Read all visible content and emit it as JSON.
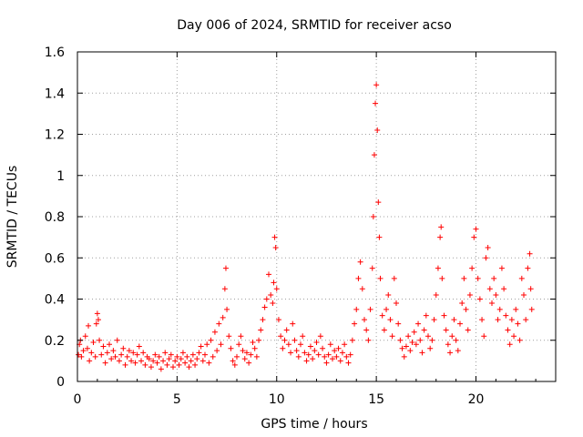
{
  "chart_data": {
    "type": "scatter",
    "title": "Day 006 of 2024, SRMTID for receiver acso",
    "xlabel": "GPS time / hours",
    "ylabel": "SRMTID / TECUs",
    "xlim": [
      0,
      24
    ],
    "ylim": [
      0,
      1.6
    ],
    "xticks": [
      0,
      5,
      10,
      15,
      20
    ],
    "xtick_labels": [
      "0",
      "5",
      "10",
      "15",
      "20"
    ],
    "yticks": [
      0,
      0.2,
      0.4,
      0.6,
      0.8,
      1.0,
      1.2,
      1.4,
      1.6
    ],
    "ytick_labels": [
      "0",
      "0.2",
      "0.4",
      "0.6",
      "0.8",
      "1",
      "1.2",
      "1.4",
      "1.6"
    ],
    "grid": true,
    "marker": "+",
    "series_color": "#ff0000",
    "series": [
      {
        "name": "SRMTID",
        "points": [
          [
            0.05,
            0.13
          ],
          [
            0.1,
            0.18
          ],
          [
            0.15,
            0.2
          ],
          [
            0.2,
            0.12
          ],
          [
            0.3,
            0.15
          ],
          [
            0.4,
            0.22
          ],
          [
            0.5,
            0.16
          ],
          [
            0.55,
            0.27
          ],
          [
            0.6,
            0.1
          ],
          [
            0.7,
            0.14
          ],
          [
            0.8,
            0.19
          ],
          [
            0.9,
            0.12
          ],
          [
            0.95,
            0.28
          ],
          [
            1.0,
            0.33
          ],
          [
            1.05,
            0.3
          ],
          [
            1.1,
            0.2
          ],
          [
            1.2,
            0.13
          ],
          [
            1.3,
            0.17
          ],
          [
            1.4,
            0.09
          ],
          [
            1.5,
            0.14
          ],
          [
            1.6,
            0.18
          ],
          [
            1.7,
            0.11
          ],
          [
            1.8,
            0.15
          ],
          [
            1.9,
            0.12
          ],
          [
            2.0,
            0.2
          ],
          [
            2.1,
            0.1
          ],
          [
            2.2,
            0.13
          ],
          [
            2.3,
            0.16
          ],
          [
            2.4,
            0.08
          ],
          [
            2.5,
            0.12
          ],
          [
            2.6,
            0.15
          ],
          [
            2.7,
            0.1
          ],
          [
            2.8,
            0.14
          ],
          [
            2.9,
            0.09
          ],
          [
            3.0,
            0.13
          ],
          [
            3.1,
            0.17
          ],
          [
            3.2,
            0.1
          ],
          [
            3.3,
            0.14
          ],
          [
            3.4,
            0.08
          ],
          [
            3.5,
            0.12
          ],
          [
            3.6,
            0.11
          ],
          [
            3.7,
            0.07
          ],
          [
            3.8,
            0.1
          ],
          [
            3.9,
            0.13
          ],
          [
            4.0,
            0.09
          ],
          [
            4.1,
            0.12
          ],
          [
            4.2,
            0.06
          ],
          [
            4.3,
            0.1
          ],
          [
            4.4,
            0.14
          ],
          [
            4.5,
            0.08
          ],
          [
            4.6,
            0.11
          ],
          [
            4.7,
            0.13
          ],
          [
            4.8,
            0.07
          ],
          [
            4.9,
            0.1
          ],
          [
            5.0,
            0.12
          ],
          [
            5.1,
            0.08
          ],
          [
            5.2,
            0.11
          ],
          [
            5.3,
            0.14
          ],
          [
            5.4,
            0.09
          ],
          [
            5.5,
            0.12
          ],
          [
            5.6,
            0.07
          ],
          [
            5.7,
            0.1
          ],
          [
            5.8,
            0.13
          ],
          [
            5.9,
            0.08
          ],
          [
            6.0,
            0.11
          ],
          [
            6.1,
            0.14
          ],
          [
            6.2,
            0.17
          ],
          [
            6.3,
            0.1
          ],
          [
            6.4,
            0.13
          ],
          [
            6.5,
            0.18
          ],
          [
            6.6,
            0.09
          ],
          [
            6.7,
            0.2
          ],
          [
            6.8,
            0.12
          ],
          [
            6.9,
            0.24
          ],
          [
            7.0,
            0.15
          ],
          [
            7.1,
            0.28
          ],
          [
            7.2,
            0.18
          ],
          [
            7.3,
            0.31
          ],
          [
            7.4,
            0.45
          ],
          [
            7.45,
            0.55
          ],
          [
            7.5,
            0.35
          ],
          [
            7.6,
            0.22
          ],
          [
            7.7,
            0.16
          ],
          [
            7.8,
            0.1
          ],
          [
            7.9,
            0.08
          ],
          [
            8.0,
            0.12
          ],
          [
            8.1,
            0.18
          ],
          [
            8.2,
            0.22
          ],
          [
            8.3,
            0.15
          ],
          [
            8.4,
            0.11
          ],
          [
            8.5,
            0.14
          ],
          [
            8.6,
            0.09
          ],
          [
            8.7,
            0.13
          ],
          [
            8.8,
            0.19
          ],
          [
            8.9,
            0.16
          ],
          [
            9.0,
            0.12
          ],
          [
            9.1,
            0.2
          ],
          [
            9.2,
            0.25
          ],
          [
            9.3,
            0.3
          ],
          [
            9.4,
            0.36
          ],
          [
            9.5,
            0.4
          ],
          [
            9.6,
            0.52
          ],
          [
            9.7,
            0.42
          ],
          [
            9.8,
            0.38
          ],
          [
            9.85,
            0.48
          ],
          [
            9.9,
            0.7
          ],
          [
            9.95,
            0.65
          ],
          [
            10.0,
            0.45
          ],
          [
            10.1,
            0.3
          ],
          [
            10.2,
            0.22
          ],
          [
            10.3,
            0.16
          ],
          [
            10.4,
            0.2
          ],
          [
            10.5,
            0.25
          ],
          [
            10.6,
            0.18
          ],
          [
            10.7,
            0.14
          ],
          [
            10.8,
            0.28
          ],
          [
            10.9,
            0.2
          ],
          [
            11.0,
            0.15
          ],
          [
            11.1,
            0.12
          ],
          [
            11.2,
            0.18
          ],
          [
            11.3,
            0.22
          ],
          [
            11.4,
            0.14
          ],
          [
            11.5,
            0.1
          ],
          [
            11.6,
            0.13
          ],
          [
            11.7,
            0.17
          ],
          [
            11.8,
            0.11
          ],
          [
            11.9,
            0.15
          ],
          [
            12.0,
            0.19
          ],
          [
            12.1,
            0.13
          ],
          [
            12.2,
            0.22
          ],
          [
            12.3,
            0.16
          ],
          [
            12.4,
            0.12
          ],
          [
            12.5,
            0.09
          ],
          [
            12.6,
            0.13
          ],
          [
            12.7,
            0.18
          ],
          [
            12.8,
            0.11
          ],
          [
            12.9,
            0.15
          ],
          [
            13.0,
            0.12
          ],
          [
            13.1,
            0.16
          ],
          [
            13.2,
            0.1
          ],
          [
            13.3,
            0.14
          ],
          [
            13.4,
            0.18
          ],
          [
            13.5,
            0.12
          ],
          [
            13.6,
            0.09
          ],
          [
            13.7,
            0.13
          ],
          [
            13.8,
            0.2
          ],
          [
            13.9,
            0.28
          ],
          [
            14.0,
            0.35
          ],
          [
            14.1,
            0.5
          ],
          [
            14.2,
            0.58
          ],
          [
            14.3,
            0.45
          ],
          [
            14.4,
            0.3
          ],
          [
            14.5,
            0.25
          ],
          [
            14.6,
            0.2
          ],
          [
            14.7,
            0.35
          ],
          [
            14.8,
            0.55
          ],
          [
            14.85,
            0.8
          ],
          [
            14.9,
            1.1
          ],
          [
            14.95,
            1.35
          ],
          [
            15.0,
            1.44
          ],
          [
            15.05,
            1.22
          ],
          [
            15.1,
            0.87
          ],
          [
            15.15,
            0.7
          ],
          [
            15.2,
            0.5
          ],
          [
            15.3,
            0.32
          ],
          [
            15.4,
            0.25
          ],
          [
            15.5,
            0.35
          ],
          [
            15.6,
            0.42
          ],
          [
            15.7,
            0.3
          ],
          [
            15.8,
            0.22
          ],
          [
            15.9,
            0.5
          ],
          [
            16.0,
            0.38
          ],
          [
            16.1,
            0.28
          ],
          [
            16.2,
            0.2
          ],
          [
            16.3,
            0.16
          ],
          [
            16.4,
            0.12
          ],
          [
            16.5,
            0.17
          ],
          [
            16.6,
            0.22
          ],
          [
            16.7,
            0.15
          ],
          [
            16.8,
            0.19
          ],
          [
            16.9,
            0.24
          ],
          [
            17.0,
            0.18
          ],
          [
            17.1,
            0.28
          ],
          [
            17.2,
            0.2
          ],
          [
            17.3,
            0.14
          ],
          [
            17.4,
            0.25
          ],
          [
            17.5,
            0.32
          ],
          [
            17.6,
            0.22
          ],
          [
            17.7,
            0.16
          ],
          [
            17.8,
            0.2
          ],
          [
            17.9,
            0.3
          ],
          [
            18.0,
            0.42
          ],
          [
            18.1,
            0.55
          ],
          [
            18.2,
            0.7
          ],
          [
            18.25,
            0.75
          ],
          [
            18.3,
            0.5
          ],
          [
            18.4,
            0.32
          ],
          [
            18.5,
            0.25
          ],
          [
            18.6,
            0.18
          ],
          [
            18.7,
            0.14
          ],
          [
            18.8,
            0.22
          ],
          [
            18.9,
            0.3
          ],
          [
            19.0,
            0.2
          ],
          [
            19.1,
            0.15
          ],
          [
            19.2,
            0.28
          ],
          [
            19.3,
            0.38
          ],
          [
            19.4,
            0.5
          ],
          [
            19.5,
            0.35
          ],
          [
            19.6,
            0.25
          ],
          [
            19.7,
            0.42
          ],
          [
            19.8,
            0.55
          ],
          [
            19.9,
            0.7
          ],
          [
            20.0,
            0.74
          ],
          [
            20.1,
            0.5
          ],
          [
            20.2,
            0.4
          ],
          [
            20.3,
            0.3
          ],
          [
            20.4,
            0.22
          ],
          [
            20.5,
            0.6
          ],
          [
            20.6,
            0.65
          ],
          [
            20.7,
            0.45
          ],
          [
            20.8,
            0.38
          ],
          [
            20.9,
            0.5
          ],
          [
            21.0,
            0.42
          ],
          [
            21.1,
            0.3
          ],
          [
            21.2,
            0.35
          ],
          [
            21.3,
            0.55
          ],
          [
            21.4,
            0.45
          ],
          [
            21.5,
            0.32
          ],
          [
            21.6,
            0.25
          ],
          [
            21.7,
            0.18
          ],
          [
            21.8,
            0.3
          ],
          [
            21.9,
            0.22
          ],
          [
            22.0,
            0.35
          ],
          [
            22.1,
            0.28
          ],
          [
            22.2,
            0.2
          ],
          [
            22.3,
            0.5
          ],
          [
            22.4,
            0.42
          ],
          [
            22.5,
            0.3
          ],
          [
            22.6,
            0.55
          ],
          [
            22.7,
            0.62
          ],
          [
            22.75,
            0.45
          ],
          [
            22.8,
            0.35
          ]
        ]
      }
    ]
  }
}
